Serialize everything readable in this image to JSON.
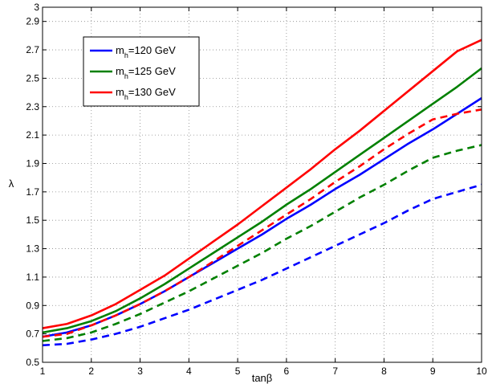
{
  "chart_data": {
    "type": "line",
    "xlabel": "tanβ",
    "ylabel": "λ",
    "xlim": [
      1,
      10
    ],
    "ylim": [
      0.5,
      3
    ],
    "xticks": [
      1,
      2,
      3,
      4,
      5,
      6,
      7,
      8,
      9,
      10
    ],
    "yticks": [
      0.5,
      0.7,
      0.9,
      1.1,
      1.3,
      1.5,
      1.7,
      1.9,
      2.1,
      2.3,
      2.5,
      2.7,
      2.9,
      3
    ],
    "xtick_labels": [
      "1",
      "2",
      "3",
      "4",
      "5",
      "6",
      "7",
      "8",
      "9",
      "10"
    ],
    "ytick_labels": [
      "0.5",
      "0.7",
      "0.9",
      "1.1",
      "1.3",
      "1.5",
      "1.7",
      "1.9",
      "2.1",
      "2.3",
      "2.5",
      "2.7",
      "2.9",
      "3"
    ],
    "grid": true,
    "legend_position": "top-left",
    "legend": [
      {
        "main": "m",
        "sub": "h",
        "rest": "=120 GeV",
        "color": "#0000ff"
      },
      {
        "main": "m",
        "sub": "h",
        "rest": "=125 GeV",
        "color": "#008000"
      },
      {
        "main": "m",
        "sub": "h",
        "rest": "=130 GeV",
        "color": "#ff0000"
      }
    ],
    "x": [
      1,
      1.5,
      2,
      2.5,
      3,
      3.5,
      4,
      4.5,
      5,
      5.5,
      6,
      6.5,
      7,
      7.5,
      8,
      8.5,
      9,
      9.5,
      10
    ],
    "series": [
      {
        "name": "m_h=120 GeV",
        "color": "#0000ff",
        "dash": "solid",
        "values": [
          0.68,
          0.71,
          0.76,
          0.83,
          0.91,
          1.0,
          1.1,
          1.2,
          1.3,
          1.4,
          1.51,
          1.61,
          1.72,
          1.82,
          1.93,
          2.04,
          2.14,
          2.25,
          2.36
        ]
      },
      {
        "name": "m_h=125 GeV",
        "color": "#008000",
        "dash": "solid",
        "values": [
          0.71,
          0.74,
          0.79,
          0.86,
          0.95,
          1.05,
          1.16,
          1.27,
          1.38,
          1.49,
          1.61,
          1.72,
          1.84,
          1.96,
          2.08,
          2.2,
          2.32,
          2.44,
          2.57
        ]
      },
      {
        "name": "m_h=130 GeV",
        "color": "#ff0000",
        "dash": "solid",
        "values": [
          0.74,
          0.77,
          0.83,
          0.91,
          1.01,
          1.11,
          1.23,
          1.35,
          1.47,
          1.6,
          1.73,
          1.86,
          2.0,
          2.13,
          2.27,
          2.41,
          2.55,
          2.69,
          2.77
        ]
      },
      {
        "color": "#0000ff",
        "dash": "dashed",
        "values": [
          0.62,
          0.63,
          0.66,
          0.7,
          0.75,
          0.81,
          0.87,
          0.94,
          1.01,
          1.08,
          1.16,
          1.24,
          1.32,
          1.4,
          1.48,
          1.57,
          1.65,
          1.7,
          1.75
        ]
      },
      {
        "color": "#008000",
        "dash": "dashed",
        "values": [
          0.65,
          0.67,
          0.71,
          0.77,
          0.84,
          0.92,
          1.0,
          1.09,
          1.18,
          1.27,
          1.37,
          1.46,
          1.56,
          1.66,
          1.75,
          1.85,
          1.94,
          1.99,
          2.03
        ]
      },
      {
        "color": "#ff0000",
        "dash": "dashed",
        "values": [
          0.68,
          0.7,
          0.76,
          0.83,
          0.91,
          1.0,
          1.1,
          1.21,
          1.32,
          1.43,
          1.54,
          1.65,
          1.77,
          1.88,
          2.0,
          2.11,
          2.21,
          2.25,
          2.28
        ]
      }
    ]
  }
}
